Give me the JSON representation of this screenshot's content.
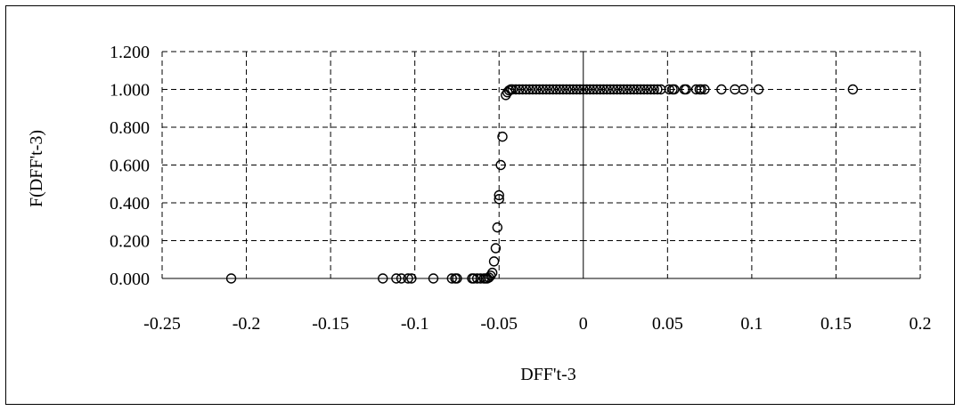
{
  "chart_data": {
    "type": "scatter",
    "title": "",
    "xlabel": "DFF't-3",
    "ylabel": "F(DFF't-3)",
    "xlim": [
      -0.25,
      0.2
    ],
    "ylim": [
      0,
      1.2
    ],
    "x_ticks": [
      "-0.25",
      "-0.2",
      "-0.15",
      "-0.1",
      "-0.05",
      "0",
      "0.05",
      "0.1",
      "0.15",
      "0.2"
    ],
    "y_ticks": [
      "0.000",
      "0.200",
      "0.400",
      "0.600",
      "0.800",
      "1.000",
      "1.200"
    ],
    "grid": "dashed",
    "legend": "none",
    "marker": "open-circle",
    "points": [
      [
        -0.209,
        0.0
      ],
      [
        -0.119,
        0.0
      ],
      [
        -0.111,
        0.0
      ],
      [
        -0.108,
        0.0
      ],
      [
        -0.104,
        0.0
      ],
      [
        -0.102,
        0.0
      ],
      [
        -0.089,
        0.0
      ],
      [
        -0.078,
        0.0
      ],
      [
        -0.076,
        0.0
      ],
      [
        -0.075,
        0.0
      ],
      [
        -0.066,
        0.0
      ],
      [
        -0.065,
        0.0
      ],
      [
        -0.063,
        0.0
      ],
      [
        -0.061,
        0.0
      ],
      [
        -0.059,
        0.0
      ],
      [
        -0.058,
        0.0
      ],
      [
        -0.057,
        0.0
      ],
      [
        -0.056,
        0.005
      ],
      [
        -0.055,
        0.015
      ],
      [
        -0.054,
        0.03
      ],
      [
        -0.053,
        0.09
      ],
      [
        -0.052,
        0.16
      ],
      [
        -0.051,
        0.27
      ],
      [
        -0.05,
        0.42
      ],
      [
        -0.05,
        0.44
      ],
      [
        -0.049,
        0.6
      ],
      [
        -0.048,
        0.75
      ],
      [
        -0.046,
        0.97
      ],
      [
        -0.045,
        0.985
      ],
      [
        -0.044,
        0.995
      ],
      [
        -0.043,
        1.0
      ],
      [
        -0.042,
        1.0
      ],
      [
        -0.04,
        1.0
      ],
      [
        -0.038,
        1.0
      ],
      [
        -0.036,
        1.0
      ],
      [
        -0.034,
        1.0
      ],
      [
        -0.032,
        1.0
      ],
      [
        -0.03,
        1.0
      ],
      [
        -0.028,
        1.0
      ],
      [
        -0.026,
        1.0
      ],
      [
        -0.024,
        1.0
      ],
      [
        -0.022,
        1.0
      ],
      [
        -0.02,
        1.0
      ],
      [
        -0.018,
        1.0
      ],
      [
        -0.016,
        1.0
      ],
      [
        -0.014,
        1.0
      ],
      [
        -0.012,
        1.0
      ],
      [
        -0.01,
        1.0
      ],
      [
        -0.008,
        1.0
      ],
      [
        -0.006,
        1.0
      ],
      [
        -0.004,
        1.0
      ],
      [
        -0.002,
        1.0
      ],
      [
        0.0,
        1.0
      ],
      [
        0.002,
        1.0
      ],
      [
        0.004,
        1.0
      ],
      [
        0.006,
        1.0
      ],
      [
        0.008,
        1.0
      ],
      [
        0.01,
        1.0
      ],
      [
        0.012,
        1.0
      ],
      [
        0.014,
        1.0
      ],
      [
        0.016,
        1.0
      ],
      [
        0.018,
        1.0
      ],
      [
        0.02,
        1.0
      ],
      [
        0.022,
        1.0
      ],
      [
        0.024,
        1.0
      ],
      [
        0.026,
        1.0
      ],
      [
        0.028,
        1.0
      ],
      [
        0.03,
        1.0
      ],
      [
        0.032,
        1.0
      ],
      [
        0.034,
        1.0
      ],
      [
        0.036,
        1.0
      ],
      [
        0.038,
        1.0
      ],
      [
        0.04,
        1.0
      ],
      [
        0.042,
        1.0
      ],
      [
        0.044,
        1.0
      ],
      [
        0.046,
        1.0
      ],
      [
        0.051,
        1.0
      ],
      [
        0.053,
        1.0
      ],
      [
        0.054,
        1.0
      ],
      [
        0.06,
        1.0
      ],
      [
        0.061,
        1.0
      ],
      [
        0.067,
        1.0
      ],
      [
        0.069,
        1.0
      ],
      [
        0.07,
        1.0
      ],
      [
        0.072,
        1.0
      ],
      [
        0.082,
        1.0
      ],
      [
        0.09,
        1.0
      ],
      [
        0.095,
        1.0
      ],
      [
        0.104,
        1.0
      ],
      [
        0.16,
        1.0
      ]
    ]
  }
}
